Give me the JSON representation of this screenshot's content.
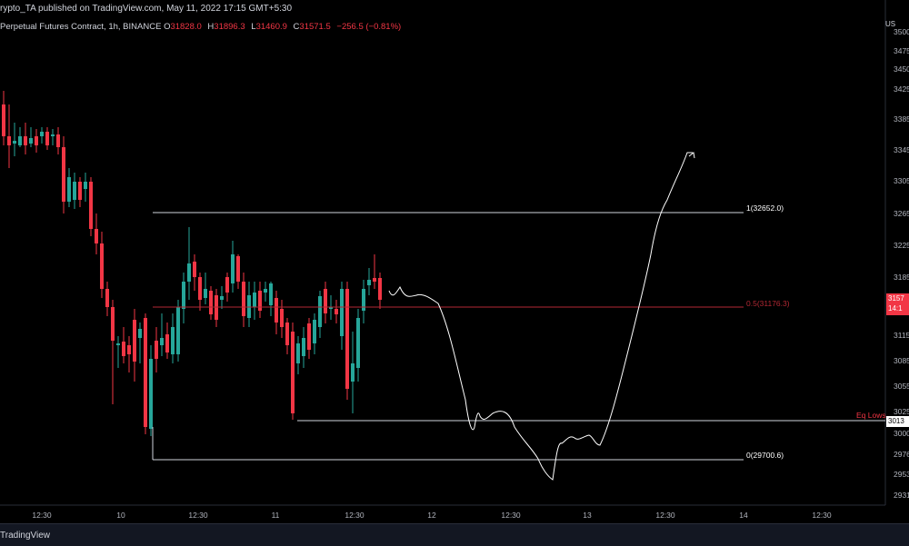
{
  "header": {
    "publisher": "rypto_TA published on TradingView.com, May 11, 2022 17:15 GMT+5:30",
    "symbol": "Perpetual Futures Contract, 1h, BINANCE",
    "ohlc": [
      {
        "k": "O",
        "v": "31828.0"
      },
      {
        "k": "H",
        "v": "31896.3"
      },
      {
        "k": "L",
        "v": "31460.9"
      },
      {
        "k": "C",
        "v": "31571.5"
      }
    ],
    "change": "−256.5 (−0.81%)"
  },
  "price_axis": {
    "currency": "US",
    "labels": [
      "3500",
      "3475",
      "3450",
      "3425",
      "3385",
      "3345",
      "3305",
      "3265",
      "3225",
      "3185",
      "3115",
      "3085",
      "3055",
      "3025",
      "3000",
      "2976",
      "2953",
      "2931"
    ],
    "current_price": "3157",
    "countdown": "14:1",
    "eq_lows_price": "3013"
  },
  "time_axis": {
    "labels": [
      "12:30",
      "10",
      "12:30",
      "11",
      "12:30",
      "12",
      "12:30",
      "13",
      "12:30",
      "14",
      "12:30"
    ]
  },
  "levels": {
    "fib_1": "1(32652.0)",
    "fib_05": "0.5(31176.3)",
    "fib_0": "0(29700.6)",
    "eq_lows": "Eq Lows"
  },
  "colors": {
    "up": "#26a69a",
    "down": "#f23645",
    "fib_line": "#d1d4dc",
    "mid_line": "#b22833"
  },
  "footer": {
    "brand": "TradingView"
  }
}
